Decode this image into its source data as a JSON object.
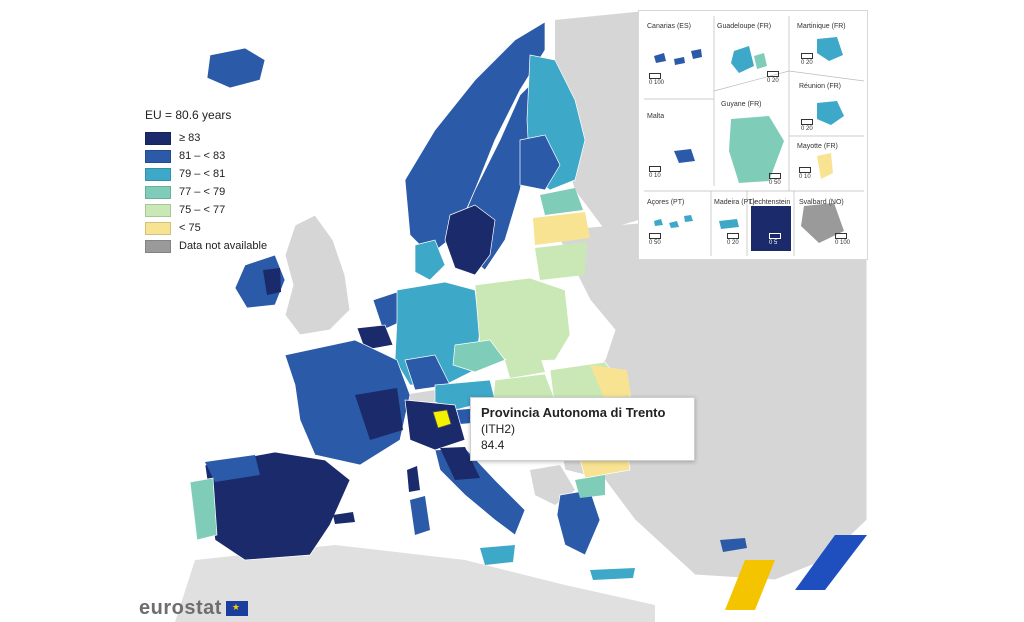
{
  "legend": {
    "title": "EU = 80.6 years",
    "items": [
      {
        "label": "≥ 83",
        "color": "#1b2a6b"
      },
      {
        "label": "81 – < 83",
        "color": "#2a5aa8"
      },
      {
        "label": "79 – < 81",
        "color": "#3ea8c8"
      },
      {
        "label": "77 – < 79",
        "color": "#7fcdb8"
      },
      {
        "label": "75 – < 77",
        "color": "#c9e8b5"
      },
      {
        "label": "< 75",
        "color": "#f7e391"
      },
      {
        "label": "Data not available",
        "color": "#9a9a9a"
      }
    ]
  },
  "tooltip": {
    "name": "Provincia Autonoma di Trento",
    "code": "(ITH2)",
    "value": "84.4"
  },
  "insets": {
    "canarias": "Canarias (ES)",
    "guadeloupe": "Guadeloupe (FR)",
    "martinique": "Martinique (FR)",
    "reunion": "Réunion (FR)",
    "malta": "Malta",
    "guyane": "Guyane (FR)",
    "mayotte": "Mayotte (FR)",
    "acores": "Açores (PT)",
    "madeira": "Madeira (PT)",
    "liechtenstein": "Liechtenstein",
    "svalbard": "Svalbard (NO)"
  },
  "scales": {
    "canarias": "0   100",
    "guadeloupe": "0   20",
    "martinique": "0   20",
    "reunion": "0   20",
    "malta": "0   10",
    "guyane": "0   50",
    "mayotte": "0   10",
    "acores": "0   50",
    "madeira": "0   20",
    "liechtenstein": "0   5",
    "svalbard": "0 100"
  },
  "logo": {
    "text": "eurostat",
    "flag_icon": "eu-flag-icon"
  },
  "colors": {
    "nodata": "#d6d6d6",
    "sea": "#ffffff",
    "highlight": "#f5f200"
  }
}
